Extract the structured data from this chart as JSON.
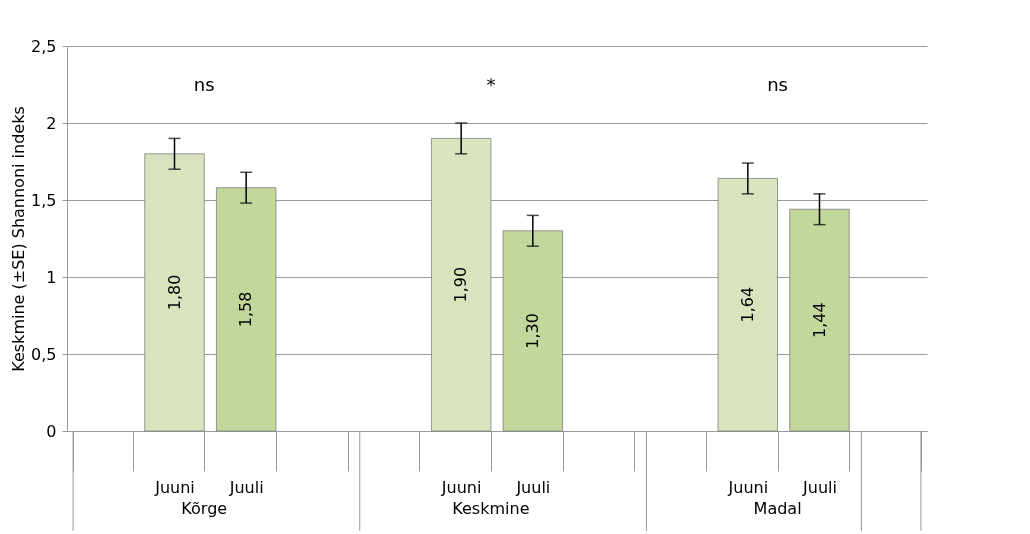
{
  "chart_data": {
    "type": "bar",
    "ylabel": "Keskmine (±SE) Shannoni indeks",
    "categories": [
      null,
      "Juuni",
      "Juuli",
      null,
      null,
      "Juuni",
      "Juuli",
      null,
      null,
      "Juuni",
      "Juuli",
      null
    ],
    "values": [
      null,
      1.8,
      1.58,
      null,
      null,
      1.9,
      1.3,
      null,
      null,
      1.64,
      1.44,
      null
    ],
    "errors": [
      null,
      0.1,
      0.1,
      null,
      null,
      0.1,
      0.1,
      null,
      null,
      0.1,
      0.1,
      null
    ],
    "value_labels": [
      null,
      "1,80",
      "1,58",
      null,
      null,
      "1,90",
      "1,30",
      null,
      null,
      "1,64",
      "1,44",
      null
    ],
    "colors": [
      "#d7e4bd",
      "#d7e4bd",
      "#c3d69b",
      "#c3d69b",
      "#d7e4bd",
      "#d7e4bd",
      "#c3d69b",
      "#c3d69b",
      "#d7e4bd",
      "#d7e4bd",
      "#c3d69b",
      "#c3d69b"
    ],
    "ylim": [
      0,
      2.5
    ],
    "yticks": [
      0,
      {
        "value": 0.5,
        "label": "0,5"
      },
      1,
      {
        "value": 1.5,
        "label": "1,5"
      },
      2,
      {
        "value": 2.5,
        "label": "2,5"
      }
    ],
    "grid": "y",
    "annotations": [
      "ns",
      "*",
      "ns",
      "Kõrge",
      "Keskmine",
      "Madal"
    ]
  }
}
